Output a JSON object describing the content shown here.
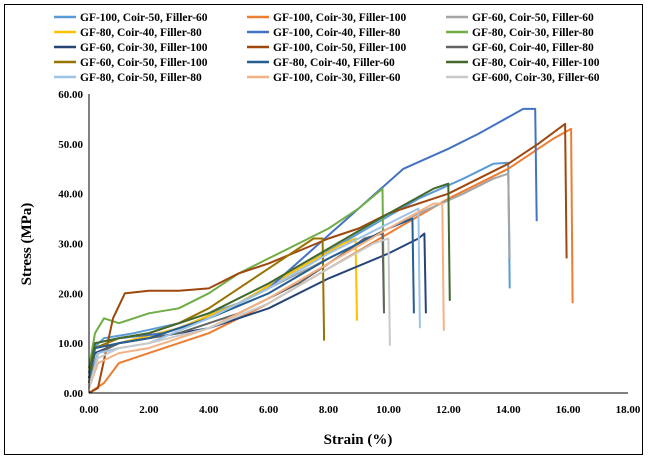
{
  "chart_data": {
    "type": "line",
    "title": "",
    "xlabel": "Strain (%)",
    "ylabel": "Stress (MPa)",
    "xlim": [
      0,
      18
    ],
    "ylim": [
      0,
      60
    ],
    "x_ticks": [
      "0.00",
      "2.00",
      "4.00",
      "6.00",
      "8.00",
      "10.00",
      "12.00",
      "14.00",
      "16.00",
      "18.00"
    ],
    "y_ticks": [
      "0.00",
      "10.00",
      "20.00",
      "30.00",
      "40.00",
      "50.00",
      "60.00"
    ],
    "grid": false,
    "legend_position": "top",
    "series": [
      {
        "name": "GF-100, Coir-50, Filler-60",
        "color": "#5b9bd5",
        "x": [
          0,
          0.15,
          0.5,
          1.5,
          3,
          5,
          7,
          9,
          11,
          12.5,
          13.5,
          14,
          14.05
        ],
        "y": [
          2,
          9,
          11,
          12,
          14,
          18,
          25,
          32,
          39,
          43,
          46,
          46.2,
          21
        ]
      },
      {
        "name": "GF-100, Coir-30, Filler-100",
        "color": "#ed7d31",
        "x": [
          0,
          0.5,
          1,
          2,
          4,
          6,
          8,
          10,
          12,
          14,
          15.5,
          16.1,
          16.15
        ],
        "y": [
          0,
          2,
          6,
          8,
          12,
          18,
          25,
          32,
          39,
          45,
          51,
          53,
          18
        ]
      },
      {
        "name": "GF-60, Coir-50, Filler-60",
        "color": "#a5a5a5",
        "x": [
          0,
          0.3,
          1,
          3,
          5,
          7,
          9,
          11,
          12.5,
          13.5,
          14,
          14.05
        ],
        "y": [
          2,
          8,
          10,
          13,
          18,
          24,
          30,
          36,
          40,
          43,
          44,
          27
        ]
      },
      {
        "name": "GF-80, Coir-40, Filler-80",
        "color": "#ffc000",
        "x": [
          0,
          0.3,
          1,
          3,
          5,
          7,
          8.5,
          8.9,
          8.95
        ],
        "y": [
          1,
          8,
          10,
          13,
          18,
          25,
          30,
          31,
          14.5
        ]
      },
      {
        "name": "GF-100, Coir-40, Filler-80",
        "color": "#4472c4",
        "x": [
          0,
          0.2,
          1,
          2.5,
          4,
          6,
          7.5,
          9,
          10.5,
          12,
          13,
          14.5,
          14.9,
          14.95
        ],
        "y": [
          3,
          10,
          11,
          12,
          15,
          21,
          29,
          37,
          45,
          49,
          52,
          57,
          57,
          34.5
        ]
      },
      {
        "name": "GF-80, Coir-30, Filler-80",
        "color": "#70ad47",
        "x": [
          0,
          0.2,
          0.5,
          1,
          2,
          3,
          4,
          5,
          6,
          7,
          8,
          9,
          9.8,
          9.85
        ],
        "y": [
          5,
          12,
          15,
          14,
          16,
          17,
          20,
          24,
          27,
          30,
          33,
          37,
          41,
          16.5
        ]
      },
      {
        "name": "GF-60, Coir-30, Filler-100",
        "color": "#264478",
        "x": [
          0,
          0.2,
          1,
          2,
          4,
          6,
          8,
          10,
          11,
          11.2,
          11.25
        ],
        "y": [
          3,
          8,
          10,
          11,
          13,
          17,
          23,
          28,
          31,
          32,
          16
        ]
      },
      {
        "name": "GF-100, Coir-50, Filler-100",
        "color": "#9e480e",
        "x": [
          0,
          0.3,
          0.8,
          1.2,
          2,
          3,
          4,
          5,
          6,
          7,
          8,
          9,
          10,
          11,
          12,
          13,
          14,
          15,
          15.9,
          15.95
        ],
        "y": [
          0,
          1,
          15,
          20,
          20.5,
          20.5,
          21,
          24,
          26,
          28.5,
          31,
          33,
          36,
          38,
          40,
          43,
          46,
          50,
          54,
          27
        ]
      },
      {
        "name": "GF-60, Coir-40, Filler-80",
        "color": "#636363",
        "x": [
          0,
          0.3,
          1,
          3,
          5,
          7,
          8.5,
          9.2,
          9.8,
          9.85
        ],
        "y": [
          2,
          8,
          10,
          12,
          16,
          22,
          28,
          31,
          32,
          16
        ]
      },
      {
        "name": "GF-60, Coir-50, Filler-100",
        "color": "#997300",
        "x": [
          0,
          0.2,
          1,
          2,
          3,
          4,
          5,
          6,
          7,
          7.5,
          7.8,
          7.85
        ],
        "y": [
          2,
          9,
          11,
          12,
          14,
          17,
          21,
          25,
          29,
          31,
          31,
          10.5
        ]
      },
      {
        "name": "GF-80, Coir-40, Filler-60",
        "color": "#255e91",
        "x": [
          0,
          0.2,
          1,
          2,
          4,
          6,
          8,
          10,
          10.8,
          10.85
        ],
        "y": [
          3,
          9,
          10,
          11,
          15,
          20,
          27,
          33,
          35,
          16
        ]
      },
      {
        "name": "GF-80, Coir-40, Filler-100",
        "color": "#43682b",
        "x": [
          0,
          0.2,
          1,
          2,
          4,
          6,
          8,
          10,
          11.5,
          12,
          12.05
        ],
        "y": [
          4,
          10,
          11,
          12,
          16,
          22,
          29,
          36,
          41,
          42,
          18.5
        ]
      },
      {
        "name": "GF-80, Coir-50, Filler-80",
        "color": "#9dc3e6",
        "x": [
          0,
          0.3,
          1,
          2,
          4,
          6,
          8,
          10,
          11,
          11.05
        ],
        "y": [
          1,
          8,
          9,
          10,
          15,
          21,
          28,
          34,
          37,
          13
        ]
      },
      {
        "name": "GF-100, Coir-30, Filler-60",
        "color": "#f4b183",
        "x": [
          0,
          0.3,
          1,
          2,
          4,
          6,
          8,
          10,
          11.5,
          11.8,
          11.85
        ],
        "y": [
          1,
          6,
          8,
          9,
          13,
          19,
          26,
          33,
          38,
          38,
          12.5
        ]
      },
      {
        "name": "GF-600, Coir-30, Filler-60",
        "color": "#c9c9c9",
        "x": [
          0,
          0.3,
          1,
          2,
          4,
          6,
          8,
          9.5,
          10,
          10.05
        ],
        "y": [
          1,
          7,
          9,
          10,
          13,
          18,
          25,
          30,
          31,
          9.5
        ]
      }
    ]
  }
}
